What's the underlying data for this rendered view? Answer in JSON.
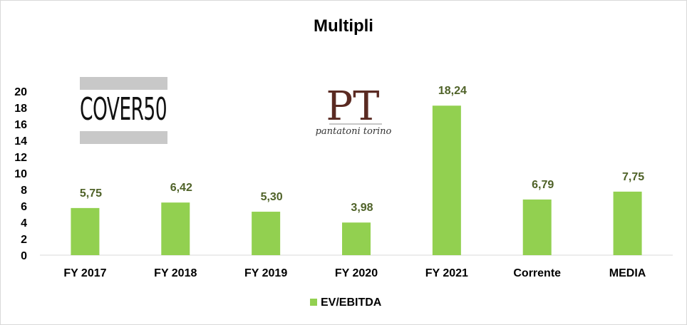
{
  "chart_data": {
    "type": "bar",
    "title": "Multipli",
    "categories": [
      "FY 2017",
      "FY 2018",
      "FY 2019",
      "FY 2020",
      "FY 2021",
      "Corrente",
      "MEDIA"
    ],
    "series": [
      {
        "name": "EV/EBITDA",
        "values": [
          5.75,
          6.42,
          5.3,
          3.98,
          18.24,
          6.79,
          7.75
        ],
        "labels": [
          "5,75",
          "6,42",
          "5,30",
          "3,98",
          "18,24",
          "6,79",
          "7,75"
        ]
      }
    ],
    "ylim": [
      0,
      20
    ],
    "yticks": [
      "0",
      "2",
      "4",
      "6",
      "8",
      "10",
      "12",
      "14",
      "16",
      "18",
      "20"
    ],
    "grid": false,
    "legend_position": "bottom",
    "colors": {
      "bar": "#92d050",
      "data_label": "#4f6228",
      "axis": "#d9d9d9"
    }
  },
  "logos": {
    "cover50": "COVER50",
    "pt": "PT",
    "pt_sub": "pantatoni torino"
  }
}
